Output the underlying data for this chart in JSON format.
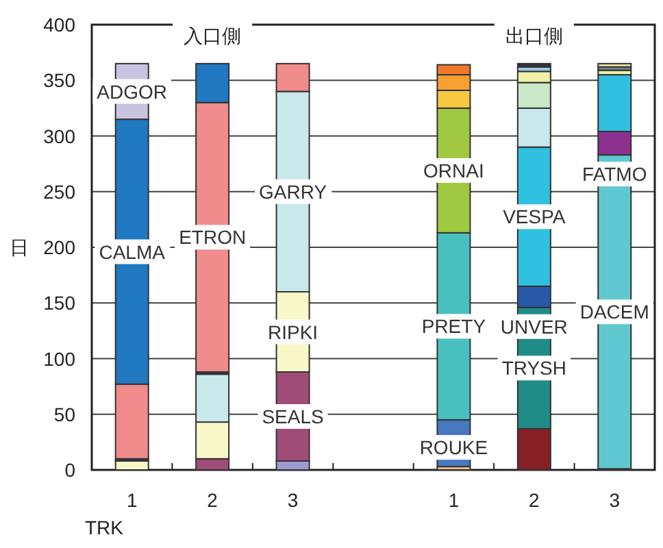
{
  "chart_data": {
    "type": "bar",
    "stacked": true,
    "categories": [
      "1",
      "2",
      "3",
      null,
      "1",
      "2",
      "3"
    ],
    "xlabel": "TRK",
    "ylabel": "日",
    "annotations": [
      "入口側",
      "出口側"
    ],
    "ylim": [
      0,
      400
    ],
    "yticks": [
      0,
      50,
      100,
      150,
      200,
      250,
      300,
      350,
      400
    ],
    "grid": "y",
    "series": [
      {
        "color": "#9c9cd0",
        "values": [
          null,
          null,
          8,
          null,
          null,
          null,
          null
        ]
      },
      {
        "name": "SEALS",
        "color": "#a04c78",
        "values": [
          null,
          10,
          80,
          null,
          null,
          null,
          null
        ]
      },
      {
        "name": "RIPKI",
        "color": "#f8f8c8",
        "values": [
          8,
          33,
          72,
          null,
          null,
          null,
          null
        ]
      },
      {
        "name": "GARRY",
        "color": "#c8e8ec",
        "values": [
          null,
          43,
          180,
          null,
          null,
          null,
          null
        ]
      },
      {
        "color": "#403050",
        "values": [
          2,
          2,
          null,
          null,
          null,
          null,
          null
        ]
      },
      {
        "name": "ETRON",
        "color": "#f08c8c",
        "values": [
          67,
          242,
          25,
          null,
          null,
          null,
          null
        ]
      },
      {
        "name": "CALMA",
        "color": "#1f78c0",
        "values": [
          238,
          35,
          null,
          null,
          null,
          null,
          null
        ]
      },
      {
        "name": "ADGOR",
        "color": "#c8c4e0",
        "values": [
          50,
          null,
          null,
          null,
          null,
          null,
          null
        ]
      },
      {
        "name": "ROUKE",
        "color": "#f8c090",
        "values": [
          null,
          null,
          null,
          null,
          3,
          null,
          null
        ]
      },
      {
        "color": "#4878c0",
        "values": [
          null,
          null,
          null,
          null,
          42,
          null,
          null
        ]
      },
      {
        "name": "PRETY",
        "color": "#48c0c0",
        "values": [
          null,
          null,
          null,
          null,
          168,
          null,
          null
        ]
      },
      {
        "name": "ORNAI",
        "color": "#a0c840",
        "values": [
          null,
          null,
          null,
          null,
          112,
          null,
          null
        ]
      },
      {
        "color": "#f8c840",
        "values": [
          null,
          null,
          null,
          null,
          16,
          null,
          null
        ]
      },
      {
        "color": "#f8a030",
        "values": [
          null,
          null,
          null,
          null,
          14,
          null,
          null
        ]
      },
      {
        "color": "#f07828",
        "values": [
          null,
          null,
          null,
          null,
          9,
          null,
          null
        ]
      },
      {
        "color": "#882028",
        "values": [
          null,
          null,
          null,
          null,
          null,
          37,
          null
        ]
      },
      {
        "name": "TRYSH",
        "color": "#208c88",
        "values": [
          null,
          null,
          null,
          null,
          null,
          109,
          null
        ]
      },
      {
        "name": "UNVER",
        "color": "#2858a8",
        "values": [
          null,
          null,
          null,
          null,
          null,
          19,
          null
        ]
      },
      {
        "color": "#205050",
        "values": [
          null,
          null,
          null,
          null,
          null,
          null,
          1
        ]
      },
      {
        "name": "DACEM",
        "color": "#60c8d0",
        "values": [
          null,
          null,
          null,
          null,
          null,
          null,
          282
        ]
      },
      {
        "name": "FATMO",
        "color": "#8c3090",
        "values": [
          null,
          null,
          null,
          null,
          null,
          null,
          21
        ]
      },
      {
        "name": "VESPA",
        "color": "#30c0e0",
        "values": [
          null,
          null,
          null,
          null,
          null,
          125,
          51
        ]
      },
      {
        "color": "#c8e8ec",
        "values": [
          null,
          null,
          null,
          null,
          null,
          35,
          null
        ]
      },
      {
        "color": "#c8e8c8",
        "values": [
          null,
          null,
          null,
          null,
          null,
          23,
          null
        ]
      },
      {
        "color": "#f0f0a8",
        "values": [
          null,
          null,
          null,
          null,
          null,
          10,
          4
        ]
      },
      {
        "color": "#a0c8e8",
        "values": [
          null,
          null,
          null,
          null,
          null,
          4,
          null
        ]
      },
      {
        "color": "#708890",
        "values": [
          null,
          null,
          null,
          null,
          null,
          null,
          3
        ]
      },
      {
        "color": "#303040",
        "values": [
          null,
          null,
          null,
          null,
          null,
          3,
          null
        ]
      },
      {
        "color": "#e8e0a0",
        "values": [
          null,
          null,
          null,
          null,
          null,
          null,
          3
        ]
      }
    ]
  }
}
